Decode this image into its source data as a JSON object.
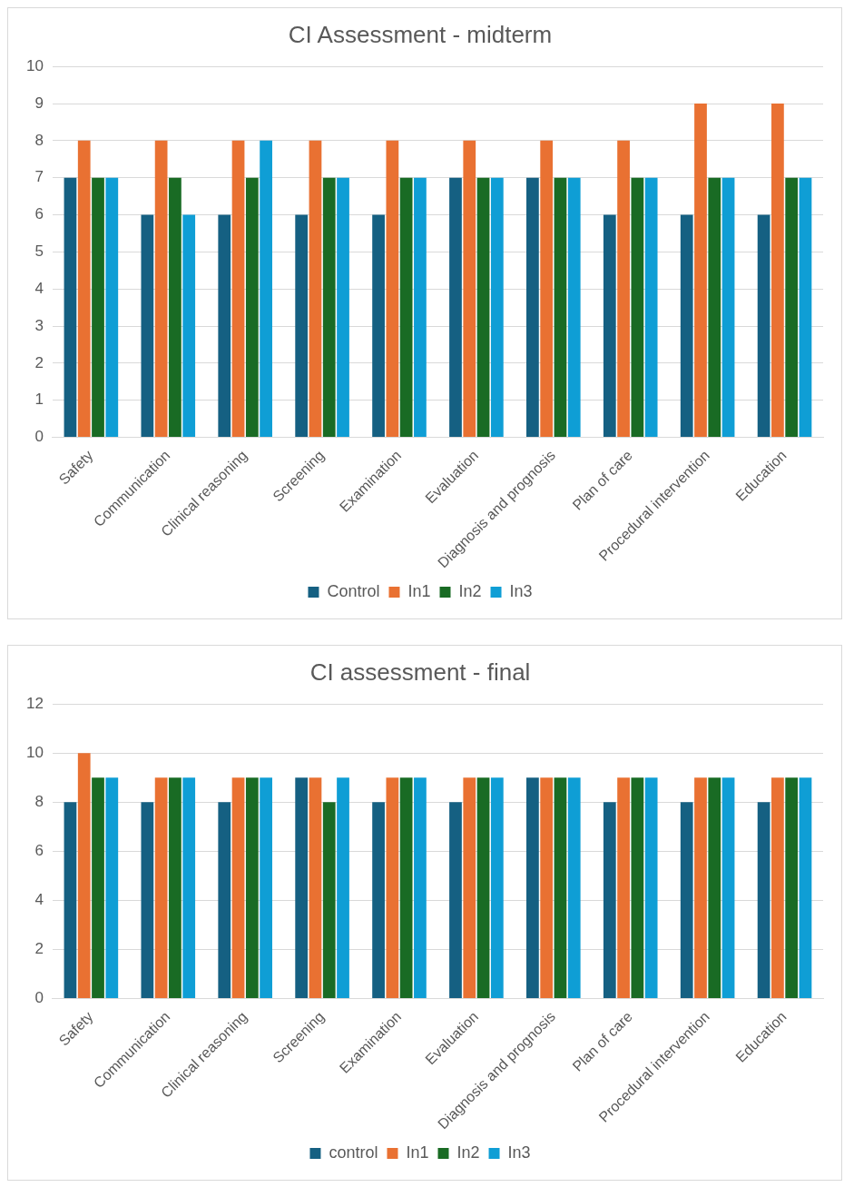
{
  "chart_data": [
    {
      "type": "bar",
      "title": "CI Assessment - midterm",
      "categories": [
        "Safety",
        "Communication",
        "Clinical reasoning",
        "Screening",
        "Examination",
        "Evaluation",
        "Diagnosis and prognosis",
        "Plan of care",
        "Procedural intervention",
        "Education"
      ],
      "series": [
        {
          "name": "Control",
          "color": "#156082",
          "values": [
            7,
            6,
            6,
            6,
            6,
            7,
            7,
            6,
            6,
            6
          ]
        },
        {
          "name": "In1",
          "color": "#e97132",
          "values": [
            8,
            8,
            8,
            8,
            8,
            8,
            8,
            8,
            9,
            9
          ]
        },
        {
          "name": "In2",
          "color": "#196b24",
          "values": [
            7,
            7,
            7,
            7,
            7,
            7,
            7,
            7,
            7,
            7
          ]
        },
        {
          "name": "In3",
          "color": "#0f9ed5",
          "values": [
            7,
            6,
            8,
            7,
            7,
            7,
            7,
            7,
            7,
            7
          ]
        }
      ],
      "ylim": [
        0,
        10
      ],
      "yticks": [
        0,
        1,
        2,
        3,
        4,
        5,
        6,
        7,
        8,
        9,
        10
      ],
      "grid": "y",
      "legend": "bottom"
    },
    {
      "type": "bar",
      "title": "CI assessment - final",
      "categories": [
        "Safety",
        "Communication",
        "Clinical reasoning",
        "Screening",
        "Examination",
        "Evaluation",
        "Diagnosis and prognosis",
        "Plan of care",
        "Procedural intervention",
        "Education"
      ],
      "series": [
        {
          "name": "control",
          "color": "#156082",
          "values": [
            8,
            8,
            8,
            9,
            8,
            8,
            9,
            8,
            8,
            8
          ]
        },
        {
          "name": "In1",
          "color": "#e97132",
          "values": [
            10,
            9,
            9,
            9,
            9,
            9,
            9,
            9,
            9,
            9
          ]
        },
        {
          "name": "In2",
          "color": "#196b24",
          "values": [
            9,
            9,
            9,
            8,
            9,
            9,
            9,
            9,
            9,
            9
          ]
        },
        {
          "name": "In3",
          "color": "#0f9ed5",
          "values": [
            9,
            9,
            9,
            9,
            9,
            9,
            9,
            9,
            9,
            9
          ]
        }
      ],
      "ylim": [
        0,
        12
      ],
      "yticks": [
        0,
        2,
        4,
        6,
        8,
        10,
        12
      ],
      "grid": "y",
      "legend": "bottom"
    }
  ]
}
